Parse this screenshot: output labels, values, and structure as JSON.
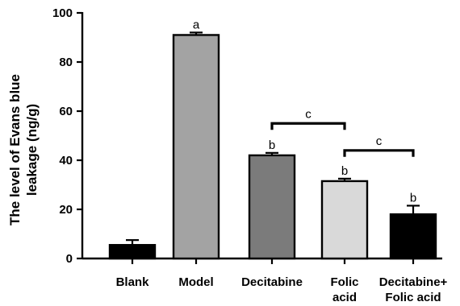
{
  "chart_data": {
    "type": "bar",
    "ylabel_lines": [
      "The level of Evans blue",
      "leakage (ng/g)"
    ],
    "ylim": [
      0,
      100
    ],
    "yticks": [
      "0",
      "20",
      "40",
      "60",
      "80",
      "100"
    ],
    "categories": [
      [
        "Blank"
      ],
      [
        "Model"
      ],
      [
        "Decitabine"
      ],
      [
        "Folic",
        "acid"
      ],
      [
        "Decitabine+",
        "Folic acid"
      ]
    ],
    "values": [
      5.5,
      91,
      42,
      31.5,
      18
    ],
    "error_upper": [
      7.5,
      92,
      43,
      32.5,
      21.5
    ],
    "colors": [
      "#000000",
      "#a3a3a3",
      "#7b7b7b",
      "#d9d9d9",
      "#000000"
    ],
    "significance_letters": [
      "",
      "a",
      "b",
      "b",
      "b"
    ],
    "brackets": [
      {
        "from": 2,
        "to": 3,
        "level": 55,
        "label": "c"
      },
      {
        "from": 3,
        "to": 4,
        "level": 44,
        "label": "c"
      }
    ],
    "grid": false
  }
}
